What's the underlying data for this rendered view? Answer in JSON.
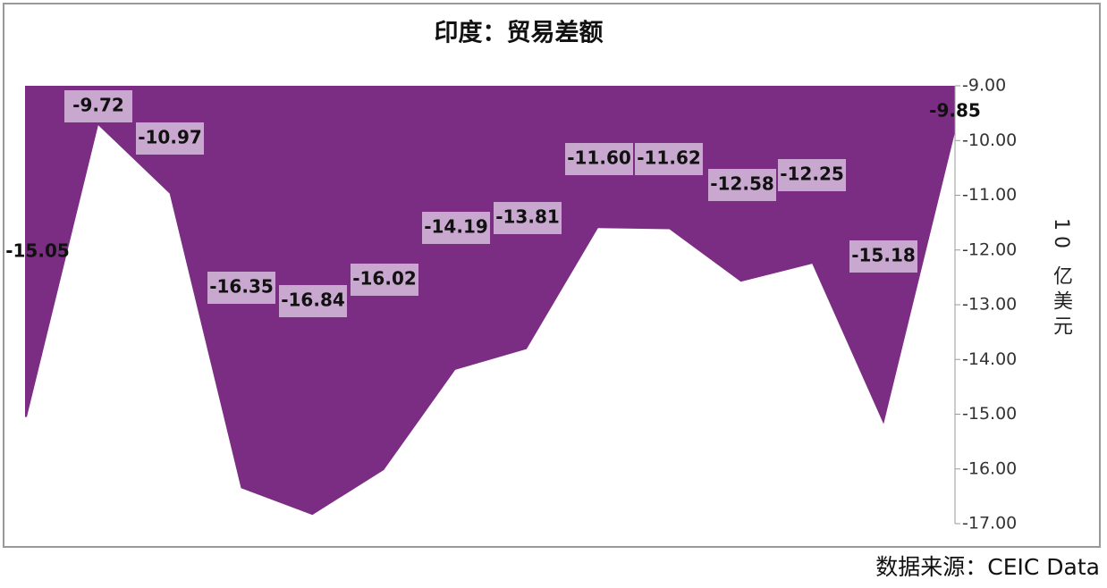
{
  "chart_data": {
    "type": "area",
    "title": "印度：贸易差额",
    "y_label": "10 亿美元",
    "source": "数据来源：CEIC Data",
    "color": "#7b2c83",
    "values": [
      -15.05,
      -9.72,
      -10.97,
      -16.35,
      -16.84,
      -16.02,
      -14.19,
      -13.81,
      -11.6,
      -11.62,
      -12.58,
      -12.25,
      -15.18,
      -9.85
    ],
    "value_labels": [
      "-15.05",
      "-9.72",
      "-10.97",
      "-16.35",
      "-16.84",
      "-16.02",
      "-14.19",
      "-13.81",
      "-11.60",
      "-11.62",
      "-12.58",
      "-12.25",
      "-15.18",
      "-9.85"
    ],
    "ylim": [
      -9,
      -17
    ],
    "yticks": [
      {
        "value": -9,
        "label": "-9.00"
      },
      {
        "value": -10,
        "label": "-10.00"
      },
      {
        "value": -11,
        "label": "-11.00"
      },
      {
        "value": -12,
        "label": "-12.00"
      },
      {
        "value": -13,
        "label": "-13.00"
      },
      {
        "value": -14,
        "label": "-14.00"
      },
      {
        "value": -15,
        "label": "-15.00"
      },
      {
        "value": -16,
        "label": "-16.00"
      },
      {
        "value": -17,
        "label": "-17.00"
      }
    ],
    "y_axis_side": "right"
  }
}
